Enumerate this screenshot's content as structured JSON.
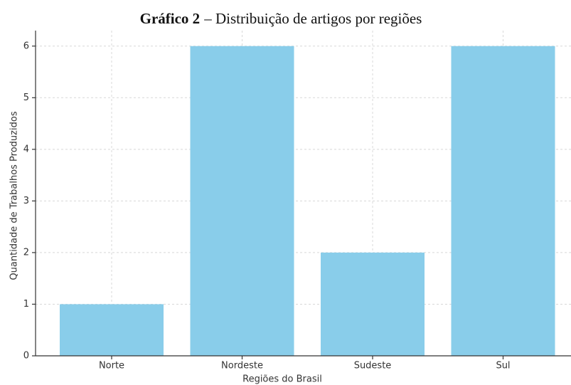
{
  "chart_data": {
    "type": "bar",
    "title_prefix": "Gráfico 2",
    "title": "– Distribuição de artigos por regiões",
    "x_label": "Regiões do Brasil",
    "y_label": "Quantidade de Trabalhos Produzidos",
    "categories": [
      "Norte",
      "Nordeste",
      "Sudeste",
      "Sul"
    ],
    "values": [
      1,
      6,
      2,
      6
    ],
    "color": "#89cdea",
    "ylim": [
      0,
      6.3
    ],
    "yticks": [
      0,
      1,
      2,
      3,
      4,
      5,
      6
    ],
    "grid": true
  }
}
